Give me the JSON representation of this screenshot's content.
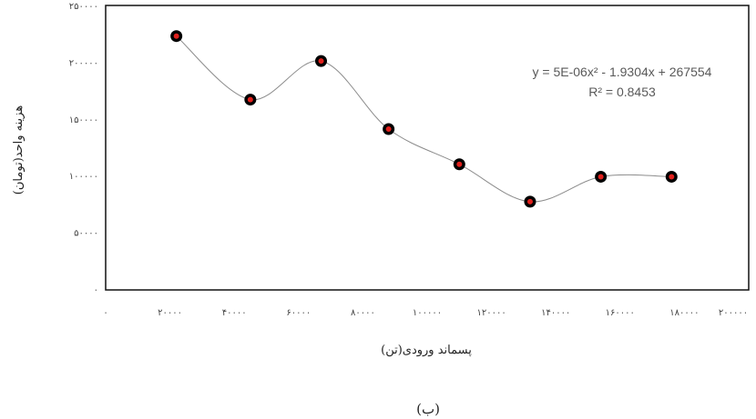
{
  "chart_data": {
    "type": "scatter",
    "title": "",
    "xlabel": "پسماند ورودی(تن)",
    "ylabel": "هزینه واحد(تومان)",
    "xlim": [
      0,
      200000
    ],
    "ylim": [
      0,
      250000
    ],
    "x_ticks": [
      0,
      20000,
      40000,
      60000,
      80000,
      100000,
      120000,
      140000,
      160000,
      180000,
      200000
    ],
    "y_ticks": [
      0,
      50000,
      100000,
      150000,
      200000,
      250000
    ],
    "x_tick_labels": [
      "۰",
      "۲۰۰۰۰",
      "۴۰۰۰۰",
      "۶۰۰۰۰",
      "۸۰۰۰۰",
      "۱۰۰۰۰۰",
      "۱۲۰۰۰۰",
      "۱۴۰۰۰۰",
      "۱۶۰۰۰۰",
      "۱۸۰۰۰۰",
      "۲۰۰۰۰۰"
    ],
    "y_tick_labels": [
      "۰",
      "۵۰۰۰۰",
      "۱۰۰۰۰۰",
      "۱۵۰۰۰۰",
      "۲۰۰۰۰۰",
      "۲۵۰۰۰۰"
    ],
    "x": [
      22000,
      45000,
      67000,
      88000,
      110000,
      132000,
      154000,
      176000
    ],
    "y": [
      223000,
      167000,
      201000,
      141000,
      110000,
      77000,
      99000,
      99000
    ],
    "grid": false,
    "legend": "none",
    "trendline": {
      "type": "smooth",
      "equation": "y = 5E-06x² - 1.9304x + 267554",
      "r_squared": "R² = 0.8453"
    },
    "marker_fill": "#e0201c",
    "marker_edge": "#000000",
    "line_color": "#8c8c8c"
  },
  "caption": "(ب)"
}
